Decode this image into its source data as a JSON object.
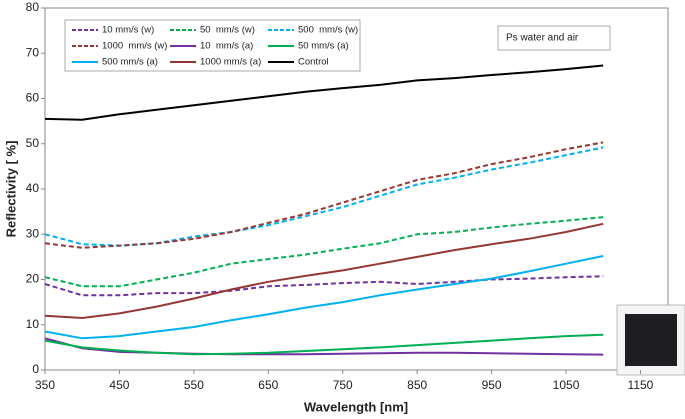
{
  "chart_data": {
    "type": "line",
    "x_label": "Wavelength [nm]",
    "y_label": "Reflectivity [ %]",
    "annotation": "Ps water and air",
    "xlim": [
      350,
      1187
    ],
    "ylim": [
      0,
      80
    ],
    "xticks": [
      350,
      450,
      550,
      650,
      750,
      850,
      950,
      1050,
      1150
    ],
    "yticks": [
      0,
      10,
      20,
      30,
      40,
      50,
      60,
      70,
      80
    ],
    "grid": false,
    "x": [
      350,
      400,
      450,
      500,
      550,
      600,
      650,
      700,
      750,
      800,
      850,
      900,
      950,
      1000,
      1050,
      1100
    ],
    "series": [
      {
        "name": "10 mm/s (w)",
        "color": "#7030a0",
        "style": "dashed",
        "values": [
          19,
          16.5,
          16.5,
          17,
          17,
          17.5,
          18.5,
          18.8,
          19.2,
          19.5,
          19,
          19.5,
          20,
          20.2,
          20.5,
          20.7
        ]
      },
      {
        "name": "50  mm/s (w)",
        "color": "#00b050",
        "style": "dashed",
        "values": [
          20.5,
          18.5,
          18.5,
          20,
          21.5,
          23.5,
          24.5,
          25.5,
          26.8,
          28,
          30,
          30.5,
          31.5,
          32.3,
          33,
          33.8
        ]
      },
      {
        "name": "500  mm/s (w)",
        "color": "#00b0f0",
        "style": "dashed",
        "values": [
          30,
          27.8,
          27.5,
          28,
          29.5,
          30.5,
          32,
          34,
          36,
          38.5,
          41,
          42.5,
          44.3,
          45.8,
          47.5,
          49.2
        ]
      },
      {
        "name": "1000  mm/s (w)",
        "color": "#953735",
        "style": "dashed",
        "values": [
          28,
          27,
          27.5,
          28,
          29,
          30.5,
          32.5,
          34.5,
          37,
          39.5,
          42,
          43.5,
          45.5,
          47,
          48.8,
          50.3
        ]
      },
      {
        "name": "10  mm/s (a)",
        "color": "#7030a0",
        "style": "solid",
        "values": [
          7,
          4.8,
          4,
          3.8,
          3.6,
          3.5,
          3.5,
          3.5,
          3.6,
          3.7,
          3.8,
          3.8,
          3.7,
          3.6,
          3.5,
          3.4
        ]
      },
      {
        "name": "50 mm/s (a)",
        "color": "#00b050",
        "style": "solid",
        "values": [
          6.5,
          5,
          4.3,
          3.8,
          3.5,
          3.6,
          3.8,
          4.2,
          4.6,
          5,
          5.5,
          6,
          6.5,
          7,
          7.5,
          7.8
        ]
      },
      {
        "name": "500 mm/s (a)",
        "color": "#00b0f0",
        "style": "solid",
        "values": [
          8.5,
          7,
          7.5,
          8.5,
          9.5,
          11,
          12.3,
          13.8,
          15,
          16.5,
          17.8,
          19,
          20.2,
          21.8,
          23.5,
          25.2
        ]
      },
      {
        "name": "1000 mm/s (a)",
        "color": "#953735",
        "style": "solid",
        "values": [
          12,
          11.5,
          12.5,
          14,
          15.8,
          17.8,
          19.5,
          20.8,
          22,
          23.5,
          25,
          26.5,
          27.8,
          29,
          30.5,
          32.3
        ]
      },
      {
        "name": "Control",
        "color": "#000000",
        "style": "solid",
        "values": [
          55.5,
          55.3,
          56.5,
          57.5,
          58.5,
          59.5,
          60.5,
          61.5,
          62.3,
          63,
          64,
          64.5,
          65.2,
          65.8,
          66.5,
          67.3
        ]
      }
    ]
  }
}
